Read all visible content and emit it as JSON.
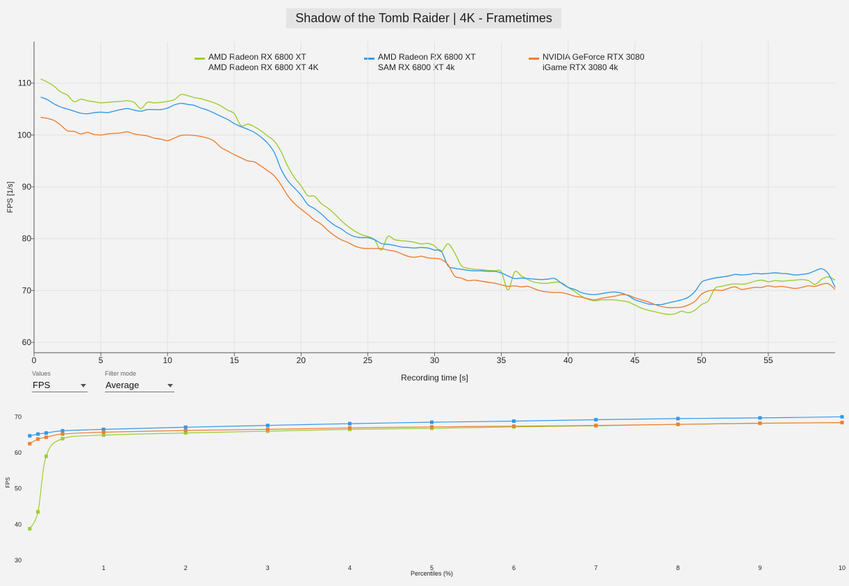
{
  "title": "Shadow of the Tomb Raider | 4K - Frametimes",
  "colors": {
    "green": "#9acd32",
    "blue": "#3399e6",
    "orange": "#ee7e33",
    "grid": "#e2e2e2",
    "background": "#f3f3f3"
  },
  "legend": [
    {
      "line1": "AMD Radeon RX 6800 XT",
      "line2": "AMD Radeon RX 6800 XT 4K",
      "color": "#9acd32"
    },
    {
      "line1": "AMD Radeon RX 6800 XT",
      "line2": "SAM RX 6800 XT 4k",
      "color": "#3399e6"
    },
    {
      "line1": "NVIDIA GeForce RTX 3080",
      "line2": "iGame RTX 3080 4k",
      "color": "#ee7e33"
    }
  ],
  "controls": {
    "values": {
      "label": "Values",
      "selected": "FPS"
    },
    "filter": {
      "label": "Filter mode",
      "selected": "Average"
    }
  },
  "chart_data": [
    {
      "type": "line",
      "title": "Shadow of the Tomb Raider | 4K - Frametimes",
      "xlabel": "Recording time [s]",
      "ylabel": "FPS [1/s]",
      "xlim": [
        0,
        60
      ],
      "ylim": [
        58,
        118
      ],
      "xticks": [
        0,
        5,
        10,
        15,
        20,
        25,
        30,
        35,
        40,
        45,
        50,
        55
      ],
      "yticks": [
        60,
        70,
        80,
        90,
        100,
        110
      ],
      "grid": true,
      "legend_position": "top",
      "series": [
        {
          "name": "AMD Radeon RX 6800 XT 4K",
          "color": "#9acd32",
          "x": [
            0.5,
            1,
            1.5,
            2,
            2.5,
            3,
            3.5,
            4,
            4.5,
            5,
            5.5,
            6,
            6.5,
            7,
            7.5,
            8,
            8.5,
            9,
            9.5,
            10,
            10.5,
            11,
            11.5,
            12,
            12.5,
            13,
            13.5,
            14,
            14.5,
            15,
            15.5,
            16,
            16.5,
            17,
            17.5,
            18,
            18.5,
            19,
            19.5,
            20,
            20.5,
            21,
            21.5,
            22,
            22.5,
            23,
            23.5,
            24,
            24.5,
            25,
            25.5,
            26,
            26.5,
            27,
            27.5,
            28,
            28.5,
            29,
            29.5,
            30,
            30.5,
            31,
            31.5,
            32,
            32.5,
            33,
            33.5,
            34,
            34.5,
            35,
            35.5,
            36,
            36.5,
            37,
            37.5,
            38,
            38.5,
            39,
            39.5,
            40,
            40.5,
            41,
            41.5,
            42,
            42.5,
            43,
            43.5,
            44,
            44.5,
            45,
            45.5,
            46,
            46.5,
            47,
            47.5,
            48,
            48.5,
            49,
            49.5,
            50,
            50.5,
            51,
            51.5,
            52,
            52.5,
            53,
            53.5,
            54,
            54.5,
            55,
            55.5,
            56,
            56.5,
            57,
            57.5,
            58,
            58.5,
            59,
            59.5,
            60
          ],
          "y": [
            110.8,
            110.2,
            109.4,
            108.3,
            107.7,
            106.4,
            106.9,
            106.6,
            106.4,
            106.2,
            106.3,
            106.4,
            106.5,
            106.6,
            106.3,
            105.1,
            106.3,
            106.2,
            106.3,
            106.5,
            106.8,
            107.8,
            107.6,
            107.2,
            107.0,
            106.6,
            106.2,
            105.6,
            104.8,
            104.1,
            101.8,
            102.1,
            101.6,
            100.8,
            99.8,
            98.8,
            96.8,
            94.0,
            91.8,
            90.2,
            88.3,
            88.2,
            86.8,
            85.9,
            84.8,
            83.5,
            82.4,
            81.5,
            80.8,
            80.4,
            79.8,
            77.8,
            80.4,
            79.8,
            79.6,
            79.5,
            79.3,
            79.0,
            79.1,
            78.6,
            77.5,
            79.0,
            77.3,
            74.8,
            74.3,
            74.1,
            74.0,
            73.9,
            73.8,
            73.6,
            70.1,
            73.6,
            72.8,
            72.1,
            71.6,
            71.4,
            71.4,
            71.6,
            71.5,
            70.6,
            69.8,
            68.9,
            68.3,
            68.0,
            68.2,
            68.2,
            68.2,
            68.0,
            67.8,
            67.2,
            66.6,
            66.2,
            65.9,
            65.6,
            65.4,
            65.5,
            66.0,
            65.7,
            66.2,
            67.3,
            68.0,
            70.4,
            70.8,
            71.1,
            71.3,
            71.2,
            71.4,
            71.8,
            72.0,
            71.7,
            71.9,
            71.8,
            71.9,
            72.0,
            72.1,
            71.9,
            71.2,
            72.2,
            72.6,
            72.0
          ]
        },
        {
          "name": "SAM RX 6800 XT 4k",
          "color": "#3399e6",
          "x": [
            0.5,
            1,
            1.5,
            2,
            2.5,
            3,
            3.5,
            4,
            4.5,
            5,
            5.5,
            6,
            6.5,
            7,
            7.5,
            8,
            8.5,
            9,
            9.5,
            10,
            10.5,
            11,
            11.5,
            12,
            12.5,
            13,
            13.5,
            14,
            14.5,
            15,
            15.5,
            16,
            16.5,
            17,
            17.5,
            18,
            18.5,
            19,
            19.5,
            20,
            20.5,
            21,
            21.5,
            22,
            22.5,
            23,
            23.5,
            24,
            24.5,
            25,
            25.5,
            26,
            26.5,
            27,
            27.5,
            28,
            28.5,
            29,
            29.5,
            30,
            30.5,
            31,
            31.5,
            32,
            32.5,
            33,
            33.5,
            34,
            34.5,
            35,
            35.5,
            36,
            36.5,
            37,
            37.5,
            38,
            38.5,
            39,
            39.5,
            40,
            40.5,
            41,
            41.5,
            42,
            42.5,
            43,
            43.5,
            44,
            44.5,
            45,
            45.5,
            46,
            46.5,
            47,
            47.5,
            48,
            48.5,
            49,
            49.5,
            50,
            50.5,
            51,
            51.5,
            52,
            52.5,
            53,
            53.5,
            54,
            54.5,
            55,
            55.5,
            56,
            56.5,
            57,
            57.5,
            58,
            58.5,
            59,
            59.5,
            60
          ],
          "y": [
            107.3,
            106.8,
            106.0,
            105.4,
            105.0,
            104.6,
            104.2,
            104.1,
            104.3,
            104.4,
            104.3,
            104.6,
            104.9,
            105.1,
            104.8,
            104.6,
            104.9,
            104.9,
            104.9,
            105.2,
            105.8,
            106.1,
            105.9,
            105.7,
            105.2,
            104.8,
            104.2,
            103.6,
            103.0,
            102.2,
            101.6,
            101.1,
            100.5,
            99.6,
            98.4,
            96.6,
            93.4,
            91.2,
            89.8,
            88.4,
            86.6,
            85.8,
            84.8,
            83.6,
            82.6,
            81.9,
            81.0,
            80.4,
            80.2,
            80.2,
            79.8,
            79.1,
            78.9,
            78.7,
            78.4,
            78.3,
            78.2,
            78.3,
            78.2,
            77.8,
            77.6,
            74.8,
            74.3,
            74.1,
            73.9,
            73.8,
            73.8,
            73.7,
            73.7,
            73.4,
            72.8,
            72.3,
            72.4,
            72.3,
            72.2,
            72.1,
            72.2,
            72.3,
            71.4,
            70.6,
            70.2,
            69.6,
            69.3,
            69.2,
            69.4,
            69.6,
            69.7,
            69.5,
            69.0,
            68.2,
            67.8,
            67.4,
            67.3,
            67.3,
            67.6,
            67.9,
            68.2,
            68.7,
            69.8,
            71.6,
            72.1,
            72.4,
            72.6,
            72.8,
            73.1,
            73.0,
            73.1,
            73.3,
            73.2,
            73.3,
            73.4,
            73.3,
            73.2,
            73.0,
            73.1,
            73.3,
            73.8,
            74.2,
            73.2,
            70.6
          ]
        },
        {
          "name": "iGame RTX 3080 4k",
          "color": "#ee7e33",
          "x": [
            0.5,
            1,
            1.5,
            2,
            2.5,
            3,
            3.5,
            4,
            4.5,
            5,
            5.5,
            6,
            6.5,
            7,
            7.5,
            8,
            8.5,
            9,
            9.5,
            10,
            10.5,
            11,
            11.5,
            12,
            12.5,
            13,
            13.5,
            14,
            14.5,
            15,
            15.5,
            16,
            16.5,
            17,
            17.5,
            18,
            18.5,
            19,
            19.5,
            20,
            20.5,
            21,
            21.5,
            22,
            22.5,
            23,
            23.5,
            24,
            24.5,
            25,
            25.5,
            26,
            26.5,
            27,
            27.5,
            28,
            28.5,
            29,
            29.5,
            30,
            30.5,
            31,
            31.5,
            32,
            32.5,
            33,
            33.5,
            34,
            34.5,
            35,
            35.5,
            36,
            36.5,
            37,
            37.5,
            38,
            38.5,
            39,
            39.5,
            40,
            40.5,
            41,
            41.5,
            42,
            42.5,
            43,
            43.5,
            44,
            44.5,
            45,
            45.5,
            46,
            46.5,
            47,
            47.5,
            48,
            48.5,
            49,
            49.5,
            50,
            50.5,
            51,
            51.5,
            52,
            52.5,
            53,
            53.5,
            54,
            54.5,
            55,
            55.5,
            56,
            56.5,
            57,
            57.5,
            58,
            58.5,
            59,
            59.5,
            60
          ],
          "y": [
            103.4,
            103.2,
            102.8,
            101.9,
            100.8,
            100.7,
            100.2,
            100.5,
            100.1,
            100.0,
            100.2,
            100.3,
            100.4,
            100.6,
            100.2,
            100.0,
            99.8,
            99.4,
            99.2,
            98.9,
            99.4,
            99.9,
            100.0,
            99.9,
            99.7,
            99.4,
            98.8,
            97.6,
            96.9,
            96.2,
            95.6,
            95.0,
            94.8,
            94.0,
            93.1,
            92.1,
            90.4,
            88.3,
            86.8,
            85.7,
            84.7,
            83.6,
            82.8,
            81.6,
            80.6,
            79.8,
            79.3,
            78.6,
            78.2,
            78.1,
            78.1,
            78.1,
            77.8,
            77.6,
            77.1,
            76.6,
            76.4,
            76.6,
            76.3,
            76.2,
            76.0,
            75.0,
            72.8,
            72.4,
            71.9,
            72.0,
            71.8,
            71.6,
            71.4,
            71.1,
            70.8,
            70.9,
            70.7,
            70.8,
            70.3,
            69.9,
            69.7,
            69.6,
            69.6,
            69.3,
            68.9,
            68.7,
            68.4,
            68.2,
            68.5,
            68.7,
            68.9,
            69.2,
            69.1,
            68.6,
            68.2,
            67.8,
            67.3,
            66.9,
            66.7,
            66.7,
            66.8,
            67.2,
            67.9,
            69.3,
            69.9,
            70.1,
            70.0,
            70.4,
            70.7,
            70.2,
            70.4,
            70.6,
            70.6,
            70.9,
            70.7,
            70.8,
            70.6,
            70.4,
            70.6,
            70.9,
            70.8,
            71.2,
            71.3,
            70.2
          ]
        }
      ]
    },
    {
      "type": "line",
      "xlabel": "Percentiles (%)",
      "ylabel": "FPS",
      "xlim": [
        0,
        10
      ],
      "ylim": [
        30,
        72
      ],
      "xticks": [
        1,
        2,
        3,
        4,
        5,
        6,
        7,
        8,
        9,
        10
      ],
      "yticks": [
        30,
        40,
        50,
        60,
        70
      ],
      "grid": false,
      "series": [
        {
          "name": "AMD Radeon RX 6800 XT 4K",
          "color": "#9acd32",
          "x": [
            0.1,
            0.2,
            0.3,
            0.5,
            1,
            2,
            3,
            4,
            5,
            6,
            7,
            8,
            9,
            10
          ],
          "y": [
            38.8,
            43.5,
            59.0,
            63.9,
            64.9,
            65.5,
            66.0,
            66.5,
            66.8,
            67.2,
            67.5,
            67.9,
            68.2,
            68.4
          ]
        },
        {
          "name": "SAM RX 6800 XT 4k",
          "color": "#3399e6",
          "x": [
            0.1,
            0.2,
            0.3,
            0.5,
            1,
            2,
            3,
            4,
            5,
            6,
            7,
            8,
            9,
            10
          ],
          "y": [
            64.7,
            65.2,
            65.5,
            66.1,
            66.5,
            67.1,
            67.6,
            68.1,
            68.5,
            68.8,
            69.2,
            69.5,
            69.7,
            70.0
          ]
        },
        {
          "name": "iGame RTX 3080 4k",
          "color": "#ee7e33",
          "x": [
            0.1,
            0.2,
            0.3,
            0.5,
            1,
            2,
            3,
            4,
            5,
            6,
            7,
            8,
            9,
            10
          ],
          "y": [
            62.5,
            63.8,
            64.3,
            65.2,
            65.7,
            66.2,
            66.5,
            66.9,
            67.2,
            67.4,
            67.6,
            67.9,
            68.2,
            68.4
          ]
        }
      ]
    }
  ]
}
